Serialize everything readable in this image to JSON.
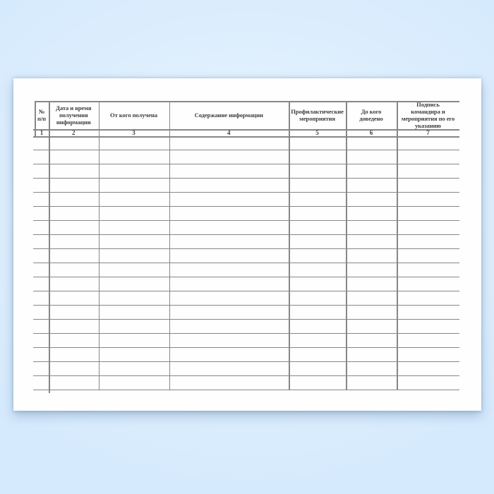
{
  "colors": {
    "background": "#d5eafd",
    "background_light": "#eef6fe",
    "paper": "#fefefe",
    "grid_line": "#878787",
    "text": "#3e3e3e",
    "shadow": "rgba(108,139,176,0.45)"
  },
  "table": {
    "columns": [
      {
        "number": "1",
        "label": "№\nп/п"
      },
      {
        "number": "2",
        "label": "Дата и время\nполучения\nинформации"
      },
      {
        "number": "3",
        "label": "От кого получена"
      },
      {
        "number": "4",
        "label": "Содержание информации"
      },
      {
        "number": "5",
        "label": "Профилактические\nмероприятия"
      },
      {
        "number": "6",
        "label": "До кого\nдоведено"
      },
      {
        "number": "7",
        "label": "Подпись\nкомандира и\nмероприятия по его\nуказанию"
      }
    ],
    "empty_row_count": 18
  }
}
